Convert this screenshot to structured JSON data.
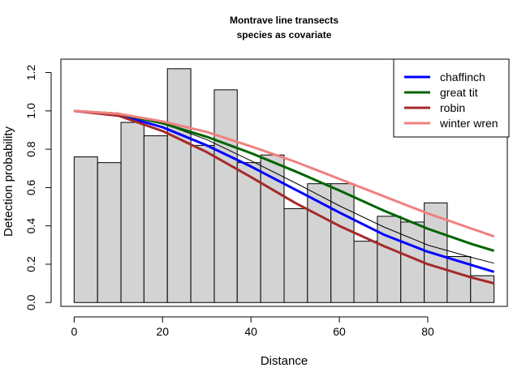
{
  "chart_data": {
    "type": "histogram-with-lines",
    "title": "Montrave line transects",
    "subtitle": "species as covariate",
    "xlabel": "Distance",
    "ylabel": "Detection probability",
    "xlim": [
      -3,
      98
    ],
    "ylim": [
      -0.02,
      1.27
    ],
    "x_ticks": [
      0,
      20,
      40,
      60,
      80
    ],
    "y_ticks": [
      0.0,
      0.2,
      0.4,
      0.6,
      0.8,
      1.0,
      1.2
    ],
    "y_tick_labels": [
      "0.0",
      "0.2",
      "0.4",
      "0.6",
      "0.8",
      "1.0",
      "1.2"
    ],
    "bar_color": "#d3d3d3",
    "bars": [
      {
        "x0": 0,
        "x1": 5.3,
        "value": 0.76
      },
      {
        "x0": 5.3,
        "x1": 10.6,
        "value": 0.73
      },
      {
        "x0": 10.6,
        "x1": 15.8,
        "value": 0.94
      },
      {
        "x0": 15.8,
        "x1": 21.1,
        "value": 0.87
      },
      {
        "x0": 21.1,
        "x1": 26.4,
        "value": 1.22
      },
      {
        "x0": 26.4,
        "x1": 31.7,
        "value": 0.82
      },
      {
        "x0": 31.7,
        "x1": 36.9,
        "value": 1.11
      },
      {
        "x0": 36.9,
        "x1": 42.2,
        "value": 0.73
      },
      {
        "x0": 42.2,
        "x1": 47.5,
        "value": 0.77
      },
      {
        "x0": 47.5,
        "x1": 52.8,
        "value": 0.49
      },
      {
        "x0": 52.8,
        "x1": 58.1,
        "value": 0.62
      },
      {
        "x0": 58.1,
        "x1": 63.3,
        "value": 0.62
      },
      {
        "x0": 63.3,
        "x1": 68.6,
        "value": 0.32
      },
      {
        "x0": 68.6,
        "x1": 73.9,
        "value": 0.45
      },
      {
        "x0": 73.9,
        "x1": 79.2,
        "value": 0.42
      },
      {
        "x0": 79.2,
        "x1": 84.4,
        "value": 0.52
      },
      {
        "x0": 84.4,
        "x1": 89.7,
        "value": 0.24
      },
      {
        "x0": 89.7,
        "x1": 95.0,
        "value": 0.14
      }
    ],
    "average_line": {
      "color": "#000000",
      "x": [
        0,
        10,
        20,
        30,
        40,
        50,
        60,
        70,
        80,
        90,
        95
      ],
      "y": [
        1.0,
        0.985,
        0.935,
        0.85,
        0.74,
        0.625,
        0.505,
        0.395,
        0.3,
        0.235,
        0.205
      ]
    },
    "series": [
      {
        "name": "chaffinch",
        "color": "#0000ff",
        "x": [
          0,
          10,
          20,
          30,
          40,
          50,
          60,
          70,
          80,
          90,
          95
        ],
        "y": [
          1.0,
          0.98,
          0.915,
          0.82,
          0.71,
          0.59,
          0.47,
          0.355,
          0.265,
          0.195,
          0.16
        ]
      },
      {
        "name": "great tit",
        "color": "#006400",
        "x": [
          0,
          10,
          20,
          30,
          40,
          50,
          60,
          70,
          80,
          90,
          95
        ],
        "y": [
          1.0,
          0.985,
          0.935,
          0.865,
          0.78,
          0.685,
          0.585,
          0.48,
          0.385,
          0.305,
          0.27
        ]
      },
      {
        "name": "robin",
        "color": "#a52a2a",
        "x": [
          0,
          10,
          20,
          30,
          40,
          50,
          60,
          70,
          80,
          90,
          95
        ],
        "y": [
          1.0,
          0.975,
          0.895,
          0.785,
          0.655,
          0.52,
          0.4,
          0.295,
          0.2,
          0.13,
          0.1
        ]
      },
      {
        "name": "winter wren",
        "color": "#f08080",
        "x": [
          0,
          10,
          20,
          30,
          40,
          50,
          60,
          70,
          80,
          90,
          95
        ],
        "y": [
          1.0,
          0.985,
          0.945,
          0.89,
          0.815,
          0.735,
          0.645,
          0.555,
          0.465,
          0.385,
          0.345
        ]
      }
    ],
    "legend_position": "top-right"
  }
}
